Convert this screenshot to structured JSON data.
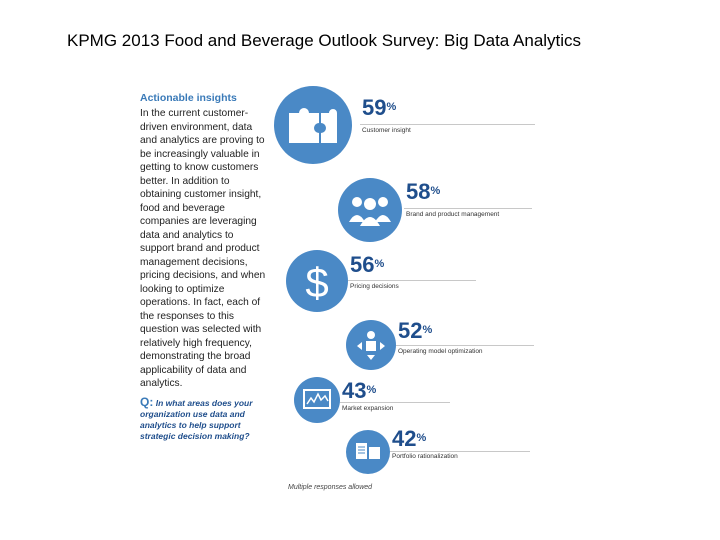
{
  "title": "KPMG 2013 Food and Beverage Outlook Survey: Big Data Analytics",
  "left": {
    "heading": "Actionable insights",
    "body": "In the current customer-driven environment, data and analytics are proving to be increasingly valuable in getting to know customers better. In addition to obtaining customer insight, food and beverage companies are leveraging data and analytics to support brand and product management decisions, pricing decisions, and when looking to optimize operations. In fact, each of the responses to this question was selected with relatively high frequency, demonstrating the broad applicability of data and analytics.",
    "question_q": "Q:",
    "question_text": "In what areas does your organization use data and analytics to help support strategic decision making?"
  },
  "stats": [
    {
      "value": "59",
      "unit": "%",
      "label": "Customer insight",
      "icon": "puzzle-icon"
    },
    {
      "value": "58",
      "unit": "%",
      "label": "Brand and product management",
      "icon": "people-icon"
    },
    {
      "value": "56",
      "unit": "%",
      "label": "Pricing decisions",
      "icon": "dollar-icon"
    },
    {
      "value": "52",
      "unit": "%",
      "label": "Operating model optimization",
      "icon": "operator-icon"
    },
    {
      "value": "43",
      "unit": "%",
      "label": "Market expansion",
      "icon": "chart-monitor-icon"
    },
    {
      "value": "42",
      "unit": "%",
      "label": "Portfolio rationalization",
      "icon": "documents-icon"
    }
  ],
  "footnote": "Multiple responses allowed",
  "colors": {
    "circle": "#4a89c6",
    "percent": "#1f4e8c",
    "heading": "#3a7ab8"
  }
}
